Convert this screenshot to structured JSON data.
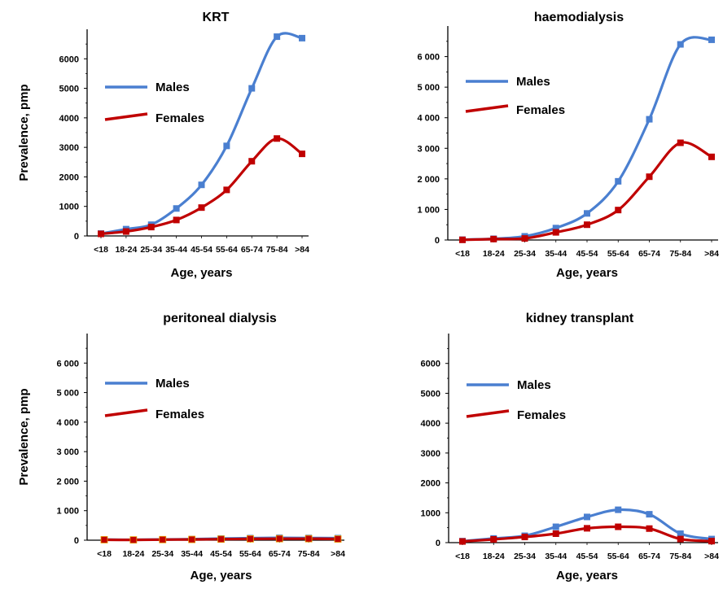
{
  "figure": {
    "ylabel": "Prevalence, pmp",
    "xlabel": "Age, years",
    "legend": [
      {
        "name": "Males",
        "color": "#4a7fd0"
      },
      {
        "name": "Females",
        "color": "#c00000"
      }
    ]
  },
  "chart_data": [
    {
      "type": "line",
      "title": "KRT",
      "xlabel": "Age, years",
      "ylabel": "Prevalence, pmp",
      "categories": [
        "<18",
        "18-24",
        "25-34",
        "35-44",
        "45-54",
        "55-64",
        "65-74",
        "75-84",
        ">84"
      ],
      "yticks": [
        "0",
        "1000",
        "2000",
        "3000",
        "4000",
        "5000",
        "6000"
      ],
      "ylim": [
        0,
        7000
      ],
      "legend_position": "top-left",
      "series": [
        {
          "name": "Males",
          "color": "#4a7fd0",
          "values": [
            80,
            230,
            380,
            930,
            1730,
            3050,
            5000,
            6750,
            6700
          ]
        },
        {
          "name": "Females",
          "color": "#c00000",
          "values": [
            70,
            150,
            300,
            540,
            960,
            1560,
            2530,
            3300,
            2780
          ]
        }
      ]
    },
    {
      "type": "line",
      "title": "haemodialysis",
      "xlabel": "Age, years",
      "ylabel": "",
      "categories": [
        "<18",
        "18-24",
        "25-34",
        "35-44",
        "45-54",
        "55-64",
        "65-74",
        "75-84",
        ">84"
      ],
      "yticks": [
        "0",
        "1 000",
        "2 000",
        "3 000",
        "4 000",
        "5 000",
        "6 000"
      ],
      "ylim": [
        0,
        7000
      ],
      "legend_position": "top-left",
      "series": [
        {
          "name": "Males",
          "color": "#4a7fd0",
          "values": [
            10,
            40,
            120,
            390,
            870,
            1920,
            3950,
            6400,
            6550
          ]
        },
        {
          "name": "Females",
          "color": "#c00000",
          "values": [
            5,
            30,
            50,
            250,
            500,
            980,
            2070,
            3180,
            2720
          ]
        }
      ]
    },
    {
      "type": "line",
      "title": "peritoneal dialysis",
      "xlabel": "Age, years",
      "ylabel": "Prevalence, pmp",
      "categories": [
        "<18",
        "18-24",
        "25-34",
        "35-44",
        "45-54",
        "55-64",
        "65-74",
        "75-84",
        ">84"
      ],
      "yticks": [
        "0",
        "1 000",
        "2 000",
        "3 000",
        "4 000",
        "5 000",
        "6 000"
      ],
      "ylim": [
        0,
        7000
      ],
      "legend_position": "top-left",
      "series": [
        {
          "name": "Males",
          "color": "#4a7fd0",
          "values": [
            20,
            15,
            25,
            35,
            55,
            70,
            80,
            75,
            70
          ]
        },
        {
          "name": "Females",
          "color": "#c00000",
          "values": [
            15,
            10,
            20,
            25,
            35,
            45,
            50,
            50,
            40
          ]
        }
      ]
    },
    {
      "type": "line",
      "title": "kidney transplant",
      "xlabel": "Age, years",
      "ylabel": "",
      "categories": [
        "<18",
        "18-24",
        "25-34",
        "35-44",
        "45-54",
        "55-64",
        "65-74",
        "75-84",
        ">84"
      ],
      "yticks": [
        "0",
        "1000",
        "2000",
        "3000",
        "4000",
        "5000",
        "6000"
      ],
      "ylim": [
        0,
        7000
      ],
      "legend_position": "top-left",
      "series": [
        {
          "name": "Males",
          "color": "#4a7fd0",
          "values": [
            50,
            140,
            230,
            530,
            860,
            1100,
            950,
            300,
            120
          ]
        },
        {
          "name": "Females",
          "color": "#c00000",
          "values": [
            40,
            110,
            190,
            300,
            480,
            530,
            470,
            120,
            50
          ]
        }
      ]
    }
  ]
}
